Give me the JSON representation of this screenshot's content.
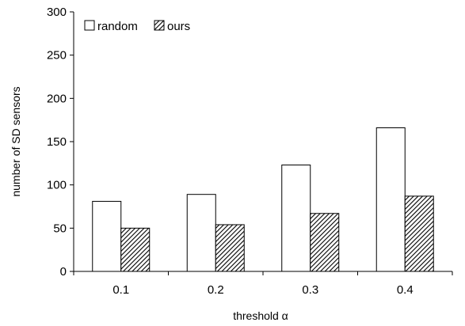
{
  "chart_data": {
    "type": "bar",
    "categories": [
      "0.1",
      "0.2",
      "0.3",
      "0.4"
    ],
    "series": [
      {
        "name": "random",
        "values": [
          81,
          89,
          123,
          166
        ]
      },
      {
        "name": "ours",
        "values": [
          50,
          54,
          67,
          87
        ]
      }
    ],
    "title": "",
    "xlabel": "threshold α",
    "ylabel": "number of SD sensors",
    "ylim": [
      0,
      300
    ],
    "yticks": [
      0,
      50,
      100,
      150,
      200,
      250,
      300
    ],
    "grid": false,
    "legend_position": "top-left",
    "colors": {
      "random": "#ffffff",
      "ours": "hatched",
      "stroke": "#000000"
    }
  }
}
